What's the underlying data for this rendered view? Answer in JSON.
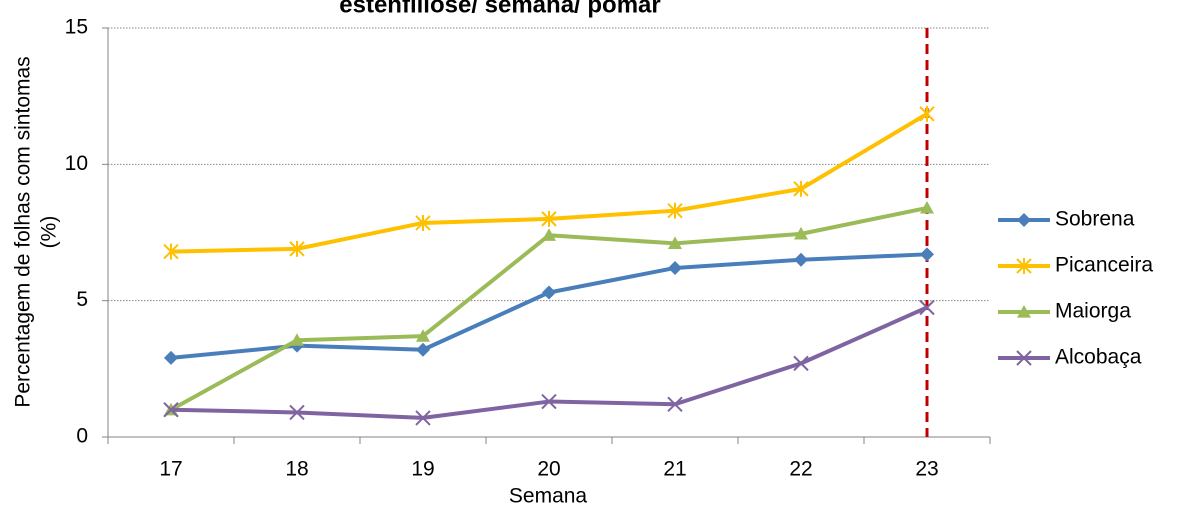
{
  "chart_data": {
    "type": "line",
    "title": "estenfiliose/ semana/ pomar",
    "xlabel": "Semana",
    "ylabel": [
      "Percentagem de folhas com sintomas",
      "(%)"
    ],
    "categories": [
      "17",
      "18",
      "19",
      "20",
      "21",
      "22",
      "23"
    ],
    "series": [
      {
        "name": "Sobrena",
        "color": "#4a7ebb",
        "marker": "diamond",
        "values": [
          2.9,
          3.35,
          3.2,
          5.3,
          6.2,
          6.5,
          6.7
        ]
      },
      {
        "name": "Picanceira",
        "color": "#ffc000",
        "marker": "asterisk",
        "values": [
          6.8,
          6.9,
          7.85,
          8.0,
          8.3,
          9.1,
          11.85
        ]
      },
      {
        "name": "Maiorga",
        "color": "#9bbb59",
        "marker": "triangle",
        "values": [
          1.0,
          3.55,
          3.7,
          7.4,
          7.1,
          7.45,
          8.4
        ]
      },
      {
        "name": "Alcobaça",
        "color": "#8064a2",
        "marker": "x",
        "values": [
          1.0,
          0.9,
          0.7,
          1.3,
          1.2,
          2.7,
          4.75
        ]
      }
    ],
    "ylim": [
      0,
      15
    ],
    "yticks": [
      0,
      5,
      10,
      15
    ],
    "grid": true,
    "vline": {
      "x": "23",
      "color": "#c00000"
    },
    "legend": "right"
  }
}
